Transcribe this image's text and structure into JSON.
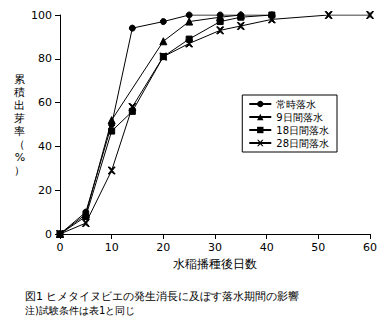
{
  "chart_data": {
    "type": "line",
    "title": "図1 ヒメタイヌビエの発生消長に及ぼす落水期間の影響",
    "subtitle": "注)試験条件は表1と同じ",
    "x_label": "水稲播種後日数",
    "y_label": "累積出芽率（%）",
    "xlim": [
      0,
      60
    ],
    "xticks": [
      0,
      10,
      20,
      30,
      40,
      50,
      60
    ],
    "ylim": [
      0,
      100
    ],
    "yticks": [
      0,
      20,
      40,
      60,
      80,
      100
    ],
    "grid": false,
    "legend": "right",
    "series": [
      {
        "name": "常時落水",
        "color": "#000000",
        "marker": "circle",
        "x": [
          0,
          5,
          10,
          14,
          20,
          25,
          31,
          35,
          41
        ],
        "values": [
          0,
          10,
          50,
          94,
          97,
          100,
          100,
          100,
          100
        ]
      },
      {
        "name": "9日間落水",
        "color": "#000000",
        "marker": "triangle",
        "x": [
          0,
          5,
          10,
          20,
          25,
          31,
          35
        ],
        "values": [
          0,
          9,
          52,
          88,
          97,
          99,
          100
        ]
      },
      {
        "name": "18日間落水",
        "color": "#000000",
        "marker": "square",
        "x": [
          0,
          5,
          10,
          14,
          20,
          25,
          31,
          35,
          41
        ],
        "values": [
          0,
          8,
          47,
          56,
          81,
          89,
          97,
          99,
          100
        ]
      },
      {
        "name": "28日間落水",
        "color": "#000000",
        "marker": "x",
        "x": [
          0,
          5,
          10,
          14,
          20,
          25,
          31,
          35,
          41,
          52,
          60
        ],
        "values": [
          0,
          5,
          29,
          58,
          81,
          87,
          93,
          95,
          98,
          100,
          100
        ]
      }
    ]
  }
}
